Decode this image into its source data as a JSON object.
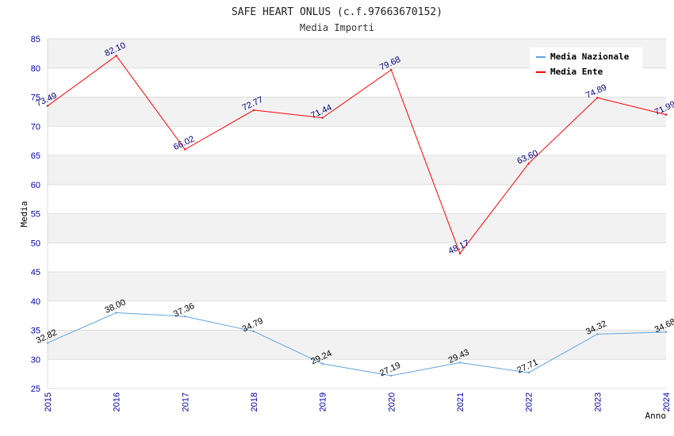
{
  "chart_data": {
    "type": "line",
    "title": "SAFE HEART ONLUS (c.f.97663670152)",
    "subtitle": "Media Importi",
    "xlabel": "Anno",
    "ylabel": "Media",
    "x": [
      "2015",
      "2016",
      "2017",
      "2018",
      "2019",
      "2020",
      "2021",
      "2022",
      "2023",
      "2024"
    ],
    "ylim": [
      25,
      85
    ],
    "yticks": [
      25,
      30,
      35,
      40,
      45,
      50,
      55,
      60,
      65,
      70,
      75,
      80,
      85
    ],
    "grid": true,
    "legend_position": "top-right",
    "series": [
      {
        "name": "Media Nazionale",
        "color": "#5fa3e0",
        "values": [
          32.82,
          38.0,
          37.36,
          34.79,
          29.24,
          27.19,
          29.43,
          27.71,
          34.32,
          34.68
        ],
        "labels": [
          "32.82",
          "38.00",
          "37.36",
          "34.79",
          "29.24",
          "27.19",
          "29.43",
          "27.71",
          "34.32",
          "34.68"
        ]
      },
      {
        "name": "Media Ente",
        "color": "#ff0000",
        "values": [
          73.49,
          82.1,
          66.02,
          72.77,
          71.44,
          79.68,
          48.17,
          63.6,
          74.89,
          71.99
        ],
        "labels": [
          "73.49",
          "82.10",
          "66.02",
          "72.77",
          "71.44",
          "79.68",
          "48.17",
          "63.60",
          "74.89",
          "71.99"
        ]
      }
    ]
  }
}
